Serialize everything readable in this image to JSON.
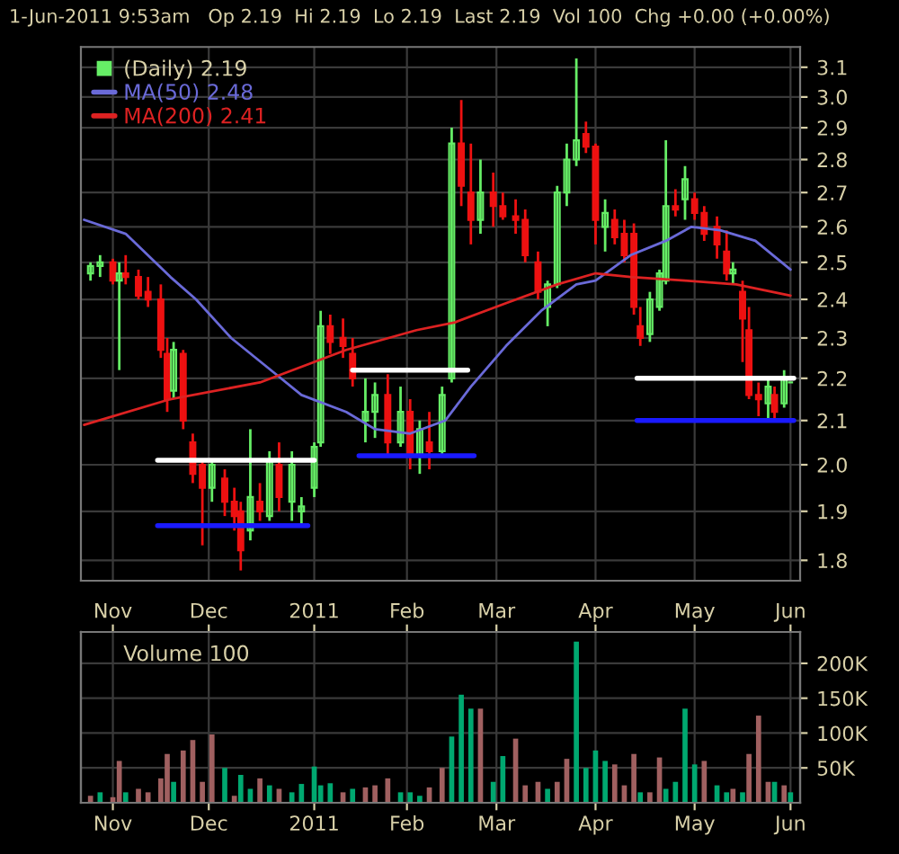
{
  "chart_data": [
    {
      "type": "candlestick",
      "subtitle": "1-Jun-2011 9:53am   Op 2.19  Hi 2.19  Lo 2.19  Last 2.19  Vol 100  Chg +0.00 (+0.00%)",
      "log": true,
      "ylim": [
        1.76,
        3.17
      ],
      "yticks": [
        1.8,
        1.9,
        {
          "value": 2.0,
          "label": "2.0"
        },
        2.1,
        2.2,
        2.3,
        2.4,
        2.5,
        2.6,
        2.7,
        2.8,
        2.9,
        {
          "value": 3.0,
          "label": "3.0"
        },
        3.1
      ],
      "xlim": [
        "2010-10-22",
        "2011-06-04"
      ],
      "xticks": [
        {
          "value": "2010-11-01",
          "label": null
        },
        {
          "value": "2010-12-01",
          "label": null
        },
        {
          "value": "2011-01-03",
          "label": null
        },
        {
          "value": "2011-02-01",
          "label": null
        },
        {
          "value": "2011-03-01",
          "label": null
        },
        {
          "value": "2011-04-01",
          "label": null
        },
        {
          "value": "2011-05-02",
          "label": null
        },
        {
          "value": "2011-06-01",
          "label": null
        }
      ],
      "tick_labels": "y",
      "grid": true,
      "legend": "top left",
      "series": [
        {
          "type": "candlestick",
          "name": "(Daily) 2.19",
          "x": [
            "2010-10-25",
            "2010-10-28",
            "2010-11-01",
            "2010-11-03",
            "2010-11-05",
            "2010-11-09",
            "2010-11-12",
            "2010-11-16",
            "2010-11-18",
            "2010-11-20",
            "2010-11-23",
            "2010-11-26",
            "2010-11-29",
            "2010-12-02",
            "2010-12-06",
            "2010-12-09",
            "2010-12-11",
            "2010-12-14",
            "2010-12-17",
            "2010-12-20",
            "2010-12-23",
            "2010-12-27",
            "2010-12-30",
            "2011-01-03",
            "2011-01-05",
            "2011-01-08",
            "2011-01-12",
            "2011-01-15",
            "2011-01-19",
            "2011-01-22",
            "2011-01-26",
            "2011-01-30",
            "2011-02-02",
            "2011-02-05",
            "2011-02-08",
            "2011-02-12",
            "2011-02-15",
            "2011-02-18",
            "2011-02-21",
            "2011-02-24",
            "2011-02-28",
            "2011-03-03",
            "2011-03-07",
            "2011-03-10",
            "2011-03-14",
            "2011-03-17",
            "2011-03-20",
            "2011-03-23",
            "2011-03-26",
            "2011-03-29",
            "2011-04-01",
            "2011-04-04",
            "2011-04-07",
            "2011-04-10",
            "2011-04-13",
            "2011-04-15",
            "2011-04-18",
            "2011-04-21",
            "2011-04-23",
            "2011-04-26",
            "2011-04-29",
            "2011-05-02",
            "2011-05-05",
            "2011-05-09",
            "2011-05-12",
            "2011-05-14",
            "2011-05-17",
            "2011-05-19",
            "2011-05-22",
            "2011-05-25",
            "2011-05-27",
            "2011-05-30",
            "2011-06-01"
          ],
          "ohlc": [
            [
              2.47,
              2.5,
              2.45,
              2.49
            ],
            [
              2.49,
              2.52,
              2.46,
              2.5
            ],
            [
              2.5,
              2.51,
              2.44,
              2.45
            ],
            [
              2.45,
              2.5,
              2.22,
              2.47
            ],
            [
              2.47,
              2.52,
              2.44,
              2.46
            ],
            [
              2.46,
              2.48,
              2.4,
              2.41
            ],
            [
              2.42,
              2.46,
              2.38,
              2.4
            ],
            [
              2.4,
              2.44,
              2.25,
              2.27
            ],
            [
              2.26,
              2.3,
              2.12,
              2.15
            ],
            [
              2.17,
              2.29,
              2.15,
              2.27
            ],
            [
              2.26,
              2.27,
              2.08,
              2.1
            ],
            [
              2.05,
              2.07,
              1.96,
              1.98
            ],
            [
              2.0,
              2.01,
              1.83,
              1.95
            ],
            [
              1.95,
              2.01,
              1.92,
              2.0
            ],
            [
              1.97,
              1.99,
              1.89,
              1.92
            ],
            [
              1.92,
              1.95,
              1.86,
              1.89
            ],
            [
              1.9,
              1.92,
              1.78,
              1.82
            ],
            [
              1.86,
              2.08,
              1.84,
              1.93
            ],
            [
              1.92,
              1.96,
              1.88,
              1.9
            ],
            [
              1.89,
              2.03,
              1.88,
              2.01
            ],
            [
              2.0,
              2.05,
              1.9,
              1.93
            ],
            [
              1.92,
              2.03,
              1.88,
              2.0
            ],
            [
              1.9,
              1.93,
              1.87,
              1.91
            ],
            [
              1.95,
              2.05,
              1.93,
              2.04
            ],
            [
              2.05,
              2.37,
              2.04,
              2.33
            ],
            [
              2.33,
              2.36,
              2.26,
              2.29
            ],
            [
              2.3,
              2.35,
              2.25,
              2.28
            ],
            [
              2.26,
              2.3,
              2.18,
              2.2
            ],
            [
              2.1,
              2.2,
              2.05,
              2.12
            ],
            [
              2.12,
              2.19,
              2.06,
              2.16
            ],
            [
              2.16,
              2.21,
              2.02,
              2.05
            ],
            [
              2.05,
              2.18,
              2.04,
              2.12
            ],
            [
              2.12,
              2.15,
              1.99,
              2.02
            ],
            [
              2.02,
              2.1,
              1.98,
              2.08
            ],
            [
              2.05,
              2.12,
              1.99,
              2.03
            ],
            [
              2.03,
              2.18,
              2.02,
              2.16
            ],
            [
              2.2,
              2.9,
              2.19,
              2.85
            ],
            [
              2.85,
              2.99,
              2.66,
              2.72
            ],
            [
              2.7,
              2.85,
              2.55,
              2.62
            ],
            [
              2.62,
              2.8,
              2.58,
              2.7
            ],
            [
              2.7,
              2.76,
              2.6,
              2.66
            ],
            [
              2.66,
              2.7,
              2.62,
              2.63
            ],
            [
              2.63,
              2.68,
              2.58,
              2.62
            ],
            [
              2.62,
              2.65,
              2.5,
              2.52
            ],
            [
              2.5,
              2.53,
              2.4,
              2.42
            ],
            [
              2.38,
              2.45,
              2.33,
              2.44
            ],
            [
              2.44,
              2.72,
              2.43,
              2.7
            ],
            [
              2.7,
              2.85,
              2.66,
              2.8
            ],
            [
              2.8,
              3.13,
              2.78,
              2.86
            ],
            [
              2.88,
              2.92,
              2.82,
              2.84
            ],
            [
              2.84,
              2.85,
              2.55,
              2.62
            ],
            [
              2.6,
              2.68,
              2.53,
              2.64
            ],
            [
              2.62,
              2.65,
              2.55,
              2.57
            ],
            [
              2.58,
              2.62,
              2.5,
              2.52
            ],
            [
              2.58,
              2.61,
              2.36,
              2.38
            ],
            [
              2.33,
              2.38,
              2.28,
              2.3
            ],
            [
              2.31,
              2.42,
              2.29,
              2.4
            ],
            [
              2.38,
              2.48,
              2.37,
              2.47
            ],
            [
              2.45,
              2.86,
              2.44,
              2.66
            ],
            [
              2.66,
              2.71,
              2.63,
              2.65
            ],
            [
              2.68,
              2.78,
              2.62,
              2.74
            ],
            [
              2.68,
              2.7,
              2.62,
              2.64
            ],
            [
              2.64,
              2.66,
              2.56,
              2.58
            ],
            [
              2.6,
              2.63,
              2.51,
              2.55
            ],
            [
              2.53,
              2.59,
              2.45,
              2.47
            ],
            [
              2.47,
              2.5,
              2.44,
              2.48
            ],
            [
              2.42,
              2.45,
              2.24,
              2.35
            ],
            [
              2.32,
              2.38,
              2.15,
              2.16
            ],
            [
              2.16,
              2.19,
              2.11,
              2.15
            ],
            [
              2.14,
              2.2,
              2.1,
              2.18
            ],
            [
              2.16,
              2.18,
              2.1,
              2.12
            ],
            [
              2.14,
              2.22,
              2.13,
              2.2
            ],
            [
              2.19,
              2.19,
              2.19,
              2.19
            ]
          ],
          "colors": [
            "#66ee66",
            "#66ee66",
            "#ee1111",
            "#66ee66",
            "#ee1111",
            "#ee1111",
            "#ee1111",
            "#ee1111",
            "#ee1111",
            "#66ee66",
            "#ee1111",
            "#ee1111",
            "#ee1111",
            "#66ee66",
            "#ee1111",
            "#ee1111",
            "#ee1111",
            "#66ee66",
            "#ee1111",
            "#66ee66",
            "#ee1111",
            "#66ee66",
            "#66ee66",
            "#66ee66",
            "#66ee66",
            "#ee1111",
            "#ee1111",
            "#ee1111",
            "#66ee66",
            "#66ee66",
            "#ee1111",
            "#66ee66",
            "#ee1111",
            "#66ee66",
            "#ee1111",
            "#66ee66",
            "#66ee66",
            "#ee1111",
            "#ee1111",
            "#66ee66",
            "#ee1111",
            "#ee1111",
            "#ee1111",
            "#ee1111",
            "#ee1111",
            "#66ee66",
            "#66ee66",
            "#66ee66",
            "#66ee66",
            "#ee1111",
            "#ee1111",
            "#66ee66",
            "#ee1111",
            "#ee1111",
            "#ee1111",
            "#ee1111",
            "#66ee66",
            "#66ee66",
            "#66ee66",
            "#ee1111",
            "#66ee66",
            "#ee1111",
            "#ee1111",
            "#ee1111",
            "#ee1111",
            "#66ee66",
            "#ee1111",
            "#ee1111",
            "#ee1111",
            "#66ee66",
            "#ee1111",
            "#66ee66",
            "#66ee66"
          ]
        },
        {
          "type": "line",
          "name": "MA(50) 2.48",
          "color": "#6a6ad8",
          "x": [
            "2010-10-23",
            "2010-11-05",
            "2010-11-19",
            "2010-11-27",
            "2010-12-08",
            "2010-12-22",
            "2010-12-30",
            "2011-01-13",
            "2011-01-22",
            "2011-02-02",
            "2011-02-13",
            "2011-02-21",
            "2011-03-04",
            "2011-03-15",
            "2011-03-26",
            "2011-04-01",
            "2011-04-12",
            "2011-04-23",
            "2011-05-01",
            "2011-05-10",
            "2011-05-21",
            "2011-06-01"
          ],
          "values": [
            2.62,
            2.58,
            2.46,
            2.4,
            2.3,
            2.21,
            2.16,
            2.12,
            2.08,
            2.07,
            2.1,
            2.18,
            2.28,
            2.37,
            2.44,
            2.45,
            2.52,
            2.56,
            2.6,
            2.59,
            2.56,
            2.48
          ]
        },
        {
          "type": "line",
          "name": "MA(200) 2.41",
          "color": "#dd2222",
          "x": [
            "2010-10-23",
            "2010-11-19",
            "2010-12-17",
            "2011-01-13",
            "2011-02-04",
            "2011-02-16",
            "2011-03-04",
            "2011-03-20",
            "2011-04-01",
            "2011-04-12",
            "2011-04-29",
            "2011-05-15",
            "2011-06-01"
          ],
          "values": [
            2.09,
            2.15,
            2.19,
            2.27,
            2.32,
            2.34,
            2.39,
            2.44,
            2.47,
            2.46,
            2.45,
            2.44,
            2.41
          ]
        },
        {
          "type": "line",
          "color": "#ffffff",
          "x": [
            "2010-11-15",
            "2011-01-03"
          ],
          "values": [
            2.01,
            2.01
          ]
        },
        {
          "type": "line",
          "color": "#1a1aff",
          "x": [
            "2010-11-15",
            "2011-01-01"
          ],
          "values": [
            1.87,
            1.87
          ]
        },
        {
          "type": "line",
          "color": "#ffffff",
          "x": [
            "2011-01-15",
            "2011-02-20"
          ],
          "values": [
            2.22,
            2.22
          ]
        },
        {
          "type": "line",
          "color": "#1a1aff",
          "x": [
            "2011-01-17",
            "2011-02-22"
          ],
          "values": [
            2.02,
            2.02
          ]
        },
        {
          "type": "line",
          "color": "#ffffff",
          "x": [
            "2011-04-14",
            "2011-06-02"
          ],
          "values": [
            2.2,
            2.2
          ]
        },
        {
          "type": "line",
          "color": "#1a1aff",
          "x": [
            "2011-04-14",
            "2011-06-02"
          ],
          "values": [
            2.1,
            2.1
          ]
        }
      ]
    },
    {
      "type": "bar",
      "ylim": [
        0,
        245000
      ],
      "yticks": [
        {
          "value": 50000,
          "label": "50K"
        },
        {
          "value": 100000,
          "label": "100K"
        },
        {
          "value": 150000,
          "label": "150K"
        },
        {
          "value": 200000,
          "label": "200K"
        }
      ],
      "xlim": [
        "2010-10-22",
        "2011-06-04"
      ],
      "x2lim": [
        "2010-10-22",
        "2011-06-04"
      ],
      "xticks": [
        {
          "value": "2010-11-01",
          "label": "Nov"
        },
        {
          "value": "2010-12-01",
          "label": "Dec"
        },
        {
          "value": "2011-01-03",
          "label": "2011"
        },
        {
          "value": "2011-02-01",
          "label": "Feb"
        },
        {
          "value": "2011-03-01",
          "label": "Mar"
        },
        {
          "value": "2011-04-01",
          "label": "Apr"
        },
        {
          "value": "2011-05-02",
          "label": "May"
        },
        {
          "value": "2011-06-01",
          "label": "Jun"
        }
      ],
      "x2ticks": [
        {
          "value": "2010-11-01",
          "label": "Nov"
        },
        {
          "value": "2010-12-01",
          "label": "Dec"
        },
        {
          "value": "2011-01-03",
          "label": "2011"
        },
        {
          "value": "2011-02-01",
          "label": "Feb"
        },
        {
          "value": "2011-03-01",
          "label": "Mar"
        },
        {
          "value": "2011-04-01",
          "label": "Apr"
        },
        {
          "value": "2011-05-02",
          "label": "May"
        },
        {
          "value": "2011-06-01",
          "label": "Jun"
        }
      ],
      "grid": true,
      "legend": "top left",
      "series": [
        {
          "name": "Volume 100",
          "x": [
            "2010-10-25",
            "2010-10-28",
            "2010-11-01",
            "2010-11-03",
            "2010-11-05",
            "2010-11-09",
            "2010-11-12",
            "2010-11-16",
            "2010-11-18",
            "2010-11-20",
            "2010-11-23",
            "2010-11-26",
            "2010-11-29",
            "2010-12-02",
            "2010-12-06",
            "2010-12-09",
            "2010-12-11",
            "2010-12-14",
            "2010-12-17",
            "2010-12-20",
            "2010-12-23",
            "2010-12-27",
            "2010-12-30",
            "2011-01-03",
            "2011-01-05",
            "2011-01-08",
            "2011-01-12",
            "2011-01-15",
            "2011-01-19",
            "2011-01-22",
            "2011-01-26",
            "2011-01-30",
            "2011-02-02",
            "2011-02-05",
            "2011-02-08",
            "2011-02-12",
            "2011-02-15",
            "2011-02-18",
            "2011-02-21",
            "2011-02-24",
            "2011-02-28",
            "2011-03-03",
            "2011-03-07",
            "2011-03-10",
            "2011-03-14",
            "2011-03-17",
            "2011-03-20",
            "2011-03-23",
            "2011-03-26",
            "2011-03-29",
            "2011-04-01",
            "2011-04-04",
            "2011-04-07",
            "2011-04-10",
            "2011-04-13",
            "2011-04-15",
            "2011-04-18",
            "2011-04-21",
            "2011-04-23",
            "2011-04-26",
            "2011-04-29",
            "2011-05-02",
            "2011-05-05",
            "2011-05-09",
            "2011-05-12",
            "2011-05-14",
            "2011-05-17",
            "2011-05-19",
            "2011-05-22",
            "2011-05-25",
            "2011-05-27",
            "2011-05-30",
            "2011-06-01"
          ],
          "values": [
            10000,
            15000,
            8000,
            60000,
            15000,
            20000,
            15000,
            35000,
            70000,
            30000,
            75000,
            90000,
            30000,
            98000,
            50000,
            10000,
            40000,
            20000,
            35000,
            25000,
            20000,
            15000,
            27000,
            52000,
            25000,
            28000,
            15000,
            20000,
            22000,
            25000,
            35000,
            15000,
            15000,
            10000,
            22000,
            50000,
            95000,
            155000,
            135000,
            135000,
            30000,
            67000,
            92000,
            25000,
            30000,
            20000,
            30000,
            63000,
            231000,
            50000,
            75000,
            60000,
            55000,
            25000,
            70000,
            15000,
            15000,
            65000,
            20000,
            30000,
            135000,
            55000,
            60000,
            25000,
            15000,
            20000,
            15000,
            70000,
            125000,
            30000,
            30000,
            25000,
            15000
          ],
          "colors": [
            "#a06060",
            "#00a870",
            "#a06060",
            "#a06060",
            "#00a870",
            "#a06060",
            "#a06060",
            "#a06060",
            "#a06060",
            "#00a870",
            "#a06060",
            "#a06060",
            "#a06060",
            "#a06060",
            "#00a870",
            "#a06060",
            "#00a870",
            "#00a870",
            "#a06060",
            "#00a870",
            "#a06060",
            "#00a870",
            "#00a870",
            "#00a870",
            "#00a870",
            "#00a870",
            "#a06060",
            "#00a870",
            "#a06060",
            "#a06060",
            "#a06060",
            "#00a870",
            "#00a870",
            "#00a870",
            "#a06060",
            "#a06060",
            "#00a870",
            "#00a870",
            "#00a870",
            "#a06060",
            "#00a870",
            "#00a870",
            "#a06060",
            "#a06060",
            "#a06060",
            "#00a870",
            "#a06060",
            "#a06060",
            "#00a870",
            "#00a870",
            "#00a870",
            "#00a870",
            "#a06060",
            "#a06060",
            "#a06060",
            "#00a870",
            "#a06060",
            "#a06060",
            "#00a870",
            "#00a870",
            "#00a870",
            "#00a870",
            "#a06060",
            "#00a870",
            "#00a870",
            "#a06060",
            "#00a870",
            "#a06060",
            "#a06060",
            "#a06060",
            "#00a870",
            "#a06060",
            "#00a870"
          ]
        }
      ]
    }
  ]
}
